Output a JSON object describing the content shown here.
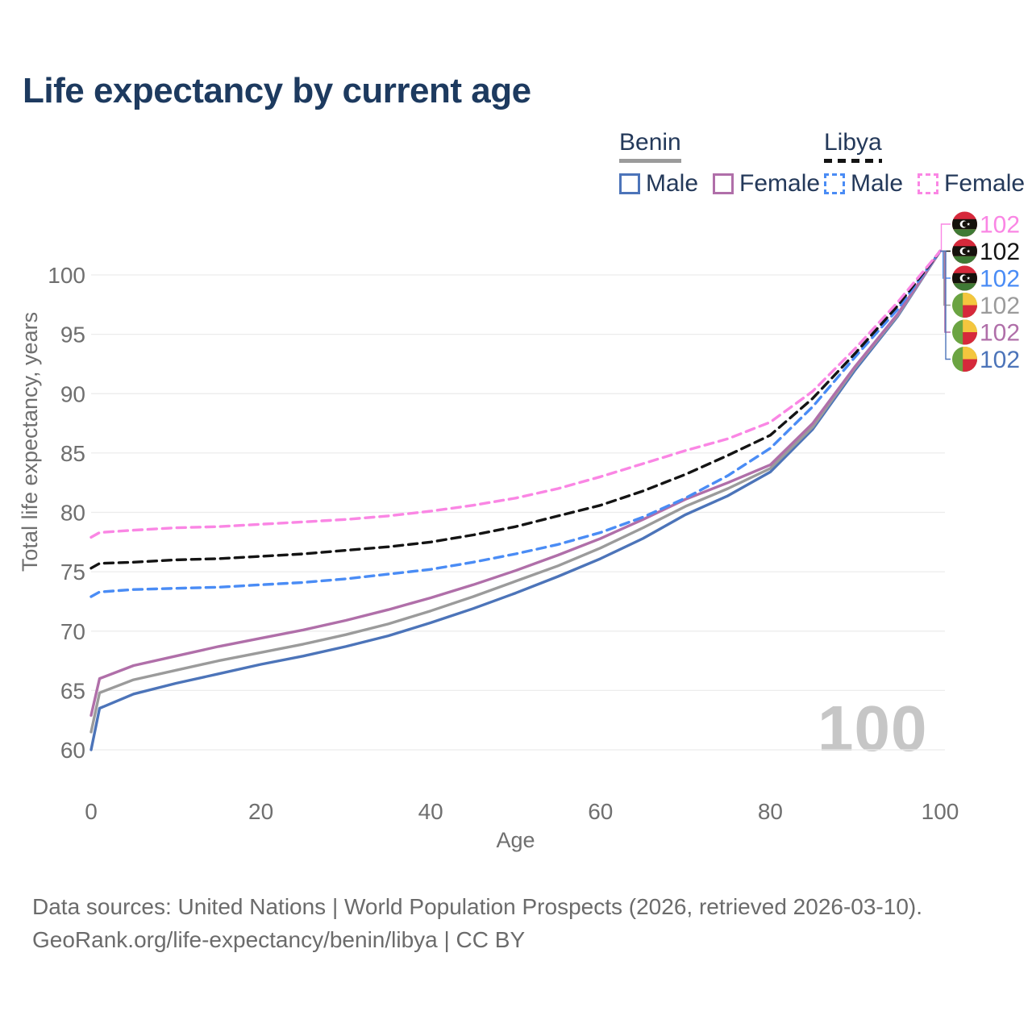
{
  "title": "Life expectancy by current age",
  "watermark": {
    "age_marker": "100"
  },
  "footer": {
    "line1": "Data sources: United Nations | World Population Prospects (2026, retrieved 2026-03-10).",
    "line2": "GeoRank.org/life-expectancy/benin/libya | CC BY"
  },
  "legend": {
    "groups": [
      {
        "label": "Benin",
        "line_style": "solid",
        "underline_color": "#9B9B9B",
        "items": [
          {
            "label": "Male",
            "color": "#4C74B9"
          },
          {
            "label": "Female",
            "color": "#B06FA9"
          }
        ]
      },
      {
        "label": "Libya",
        "line_style": "dashed",
        "underline_color": "#141414",
        "items": [
          {
            "label": "Male",
            "color": "#4A8CF5"
          },
          {
            "label": "Female",
            "color": "#FA86E4"
          }
        ]
      }
    ]
  },
  "chart_data": {
    "type": "line",
    "title": "Life expectancy by current age",
    "xlabel": "Age",
    "ylabel": "Total life expectancy, years",
    "xlim": [
      0,
      100
    ],
    "ylim": [
      58.5,
      103.5
    ],
    "x_ticks": [
      0,
      20,
      40,
      60,
      80,
      100
    ],
    "y_ticks": [
      60,
      65,
      70,
      75,
      80,
      85,
      90,
      95,
      100
    ],
    "grid": "horizontal",
    "legend_position": "top-right",
    "x": [
      0,
      1,
      5,
      10,
      15,
      20,
      25,
      30,
      35,
      40,
      45,
      50,
      55,
      60,
      65,
      70,
      75,
      80,
      85,
      90,
      95,
      100
    ],
    "series": [
      {
        "id": "benin-male",
        "country": "Benin",
        "sex": "Male",
        "line": "solid",
        "color": "#4C74B9",
        "values": [
          60.0,
          63.5,
          64.7,
          65.6,
          66.4,
          67.2,
          67.9,
          68.7,
          69.6,
          70.7,
          71.9,
          73.2,
          74.6,
          76.1,
          77.8,
          79.8,
          81.4,
          83.4,
          87.0,
          92.0,
          96.5,
          102
        ]
      },
      {
        "id": "benin-both",
        "country": "Benin",
        "sex": "Both sexes",
        "line": "solid",
        "color": "#9B9B9B",
        "values": [
          61.5,
          64.8,
          65.9,
          66.7,
          67.5,
          68.2,
          68.9,
          69.7,
          70.6,
          71.7,
          72.9,
          74.2,
          75.5,
          77.0,
          78.7,
          80.5,
          82.0,
          83.7,
          87.2,
          92.2,
          96.6,
          102
        ]
      },
      {
        "id": "benin-female",
        "country": "Benin",
        "sex": "Female",
        "line": "solid",
        "color": "#B06FA9",
        "values": [
          62.9,
          66.0,
          67.1,
          67.9,
          68.7,
          69.4,
          70.1,
          70.9,
          71.8,
          72.8,
          73.9,
          75.1,
          76.4,
          77.8,
          79.4,
          81.1,
          82.5,
          84.0,
          87.5,
          92.3,
          96.7,
          102
        ]
      },
      {
        "id": "libya-male",
        "country": "Libya",
        "sex": "Male",
        "line": "dashed",
        "color": "#4A8CF5",
        "values": [
          72.9,
          73.3,
          73.5,
          73.6,
          73.7,
          73.9,
          74.1,
          74.4,
          74.8,
          75.2,
          75.8,
          76.5,
          77.3,
          78.3,
          79.6,
          81.2,
          83.1,
          85.4,
          88.9,
          93.1,
          97.1,
          102
        ]
      },
      {
        "id": "libya-both",
        "country": "Libya",
        "sex": "Both sexes",
        "line": "dashed",
        "color": "#141414",
        "values": [
          75.3,
          75.7,
          75.8,
          76.0,
          76.1,
          76.3,
          76.5,
          76.8,
          77.1,
          77.5,
          78.1,
          78.8,
          79.7,
          80.6,
          81.8,
          83.2,
          84.8,
          86.5,
          89.6,
          93.4,
          97.4,
          102
        ]
      },
      {
        "id": "libya-female",
        "country": "Libya",
        "sex": "Female",
        "line": "dashed",
        "color": "#FA86E4",
        "values": [
          77.9,
          78.3,
          78.5,
          78.7,
          78.8,
          79.0,
          79.2,
          79.4,
          79.7,
          80.1,
          80.6,
          81.2,
          82.0,
          83.0,
          84.1,
          85.2,
          86.2,
          87.6,
          90.2,
          93.8,
          97.7,
          102
        ]
      }
    ],
    "end_labels": [
      {
        "series": "libya-female",
        "flag": "libya",
        "text": "102",
        "color": "#FA86E4"
      },
      {
        "series": "libya-both",
        "flag": "libya",
        "text": "102",
        "color": "#141414"
      },
      {
        "series": "libya-male",
        "flag": "libya",
        "text": "102",
        "color": "#4A8CF5"
      },
      {
        "series": "benin-both",
        "flag": "benin",
        "text": "102",
        "color": "#9B9B9B"
      },
      {
        "series": "benin-female",
        "flag": "benin",
        "text": "102",
        "color": "#B06FA9"
      },
      {
        "series": "benin-male",
        "flag": "benin",
        "text": "102",
        "color": "#4C74B9"
      }
    ],
    "flag_colors": {
      "benin": {
        "green": "#6BA442",
        "yellow": "#F4C63E",
        "red": "#D6293B"
      },
      "libya": {
        "red": "#D6293B",
        "black": "#15110C",
        "green": "#3F7A35",
        "crescent": "#FFFFFF"
      }
    }
  }
}
